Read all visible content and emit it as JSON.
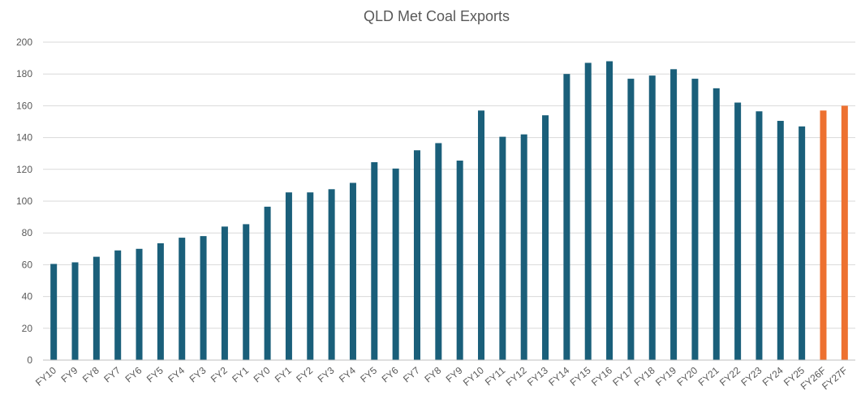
{
  "chart_data": {
    "type": "bar",
    "title": "QLD Met Coal Exports",
    "xlabel": "",
    "ylabel": "",
    "ylim": [
      0,
      200
    ],
    "yticks": [
      0,
      20,
      40,
      60,
      80,
      100,
      120,
      140,
      160,
      180,
      200
    ],
    "grid": true,
    "legend": "none",
    "colors": {
      "actual": "#1a5f7a",
      "forecast": "#ed7131"
    },
    "categories": [
      "FY10",
      "FY9",
      "FY8",
      "FY7",
      "FY6",
      "FY5",
      "FY4",
      "FY3",
      "FY2",
      "FY1",
      "FY0",
      "FY1",
      "FY2",
      "FY3",
      "FY4",
      "FY5",
      "FY6",
      "FY7",
      "FY8",
      "FY9",
      "FY10",
      "FY11",
      "FY12",
      "FY13",
      "FY14",
      "FY15",
      "FY16",
      "FY17",
      "FY18",
      "FY19",
      "FY20",
      "FY21",
      "FY22",
      "FY23",
      "FY24",
      "FY25",
      "FY26F",
      "FY27F"
    ],
    "values": [
      60.5,
      61.5,
      65,
      69,
      70,
      73.5,
      77,
      78,
      84,
      85.5,
      96.5,
      105.5,
      105.5,
      107.5,
      111.5,
      124.5,
      120.5,
      132,
      136.5,
      125.5,
      157,
      140.5,
      142,
      154,
      180,
      187,
      188,
      177,
      179,
      183,
      177,
      171,
      162,
      156.5,
      150.5,
      147,
      157,
      160
    ],
    "forecast": [
      false,
      false,
      false,
      false,
      false,
      false,
      false,
      false,
      false,
      false,
      false,
      false,
      false,
      false,
      false,
      false,
      false,
      false,
      false,
      false,
      false,
      false,
      false,
      false,
      false,
      false,
      false,
      false,
      false,
      false,
      false,
      false,
      false,
      false,
      false,
      false,
      true,
      true
    ]
  }
}
